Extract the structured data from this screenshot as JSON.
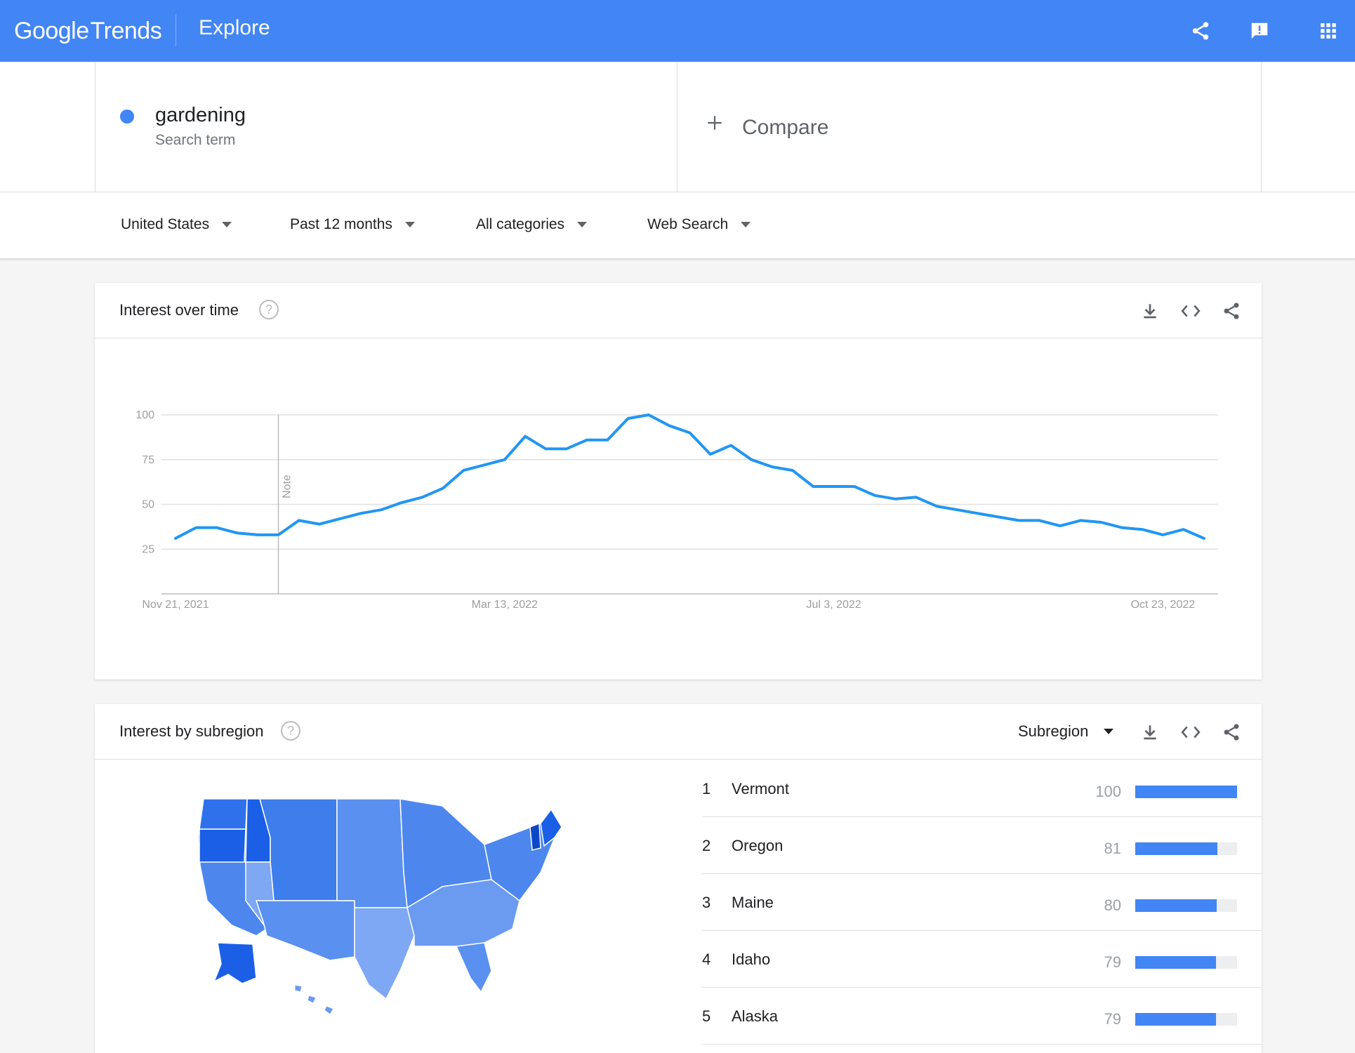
{
  "header": {
    "logo_google": "Google",
    "logo_trends": "Trends",
    "nav_title": "Explore",
    "icons": [
      "share-icon",
      "feedback-icon",
      "apps-icon"
    ]
  },
  "terms": {
    "term": "gardening",
    "term_type": "Search term",
    "term_color": "#4285f4",
    "compare_label": "Compare"
  },
  "filters": {
    "region": "United States",
    "time": "Past 12 months",
    "category": "All categories",
    "property": "Web Search"
  },
  "interest_over_time": {
    "title": "Interest over time",
    "help": "?",
    "note_label": "Note"
  },
  "chart_data": {
    "type": "line",
    "title": "",
    "xlabel": "",
    "ylabel": "",
    "ylim": [
      0,
      100
    ],
    "yticks": [
      25,
      50,
      75,
      100
    ],
    "xtick_labels": [
      "Nov 21, 2021",
      "Mar 13, 2022",
      "Jul 3, 2022",
      "Oct 23, 2022"
    ],
    "xtick_indices": [
      0,
      16,
      32,
      48
    ],
    "note_index": 5,
    "grid": true,
    "line_color": "#2196f3",
    "series": [
      {
        "values": [
          31,
          37,
          37,
          34,
          33,
          33,
          41,
          39,
          42,
          45,
          47,
          51,
          54,
          59,
          69,
          72,
          75,
          88,
          81,
          81,
          86,
          86,
          98,
          100,
          94,
          90,
          78,
          83,
          75,
          71,
          69,
          60,
          60,
          60,
          55,
          53,
          54,
          49,
          47,
          45,
          43,
          41,
          41,
          38,
          41,
          40,
          37,
          36,
          33,
          36,
          31
        ]
      }
    ]
  },
  "interest_by_subregion": {
    "title": "Interest by subregion",
    "help": "?",
    "resolution": "Subregion",
    "rows": [
      {
        "rank": "1",
        "name": "Vermont",
        "value": "100",
        "fraction": 1.0
      },
      {
        "rank": "2",
        "name": "Oregon",
        "value": "81",
        "fraction": 0.81
      },
      {
        "rank": "3",
        "name": "Maine",
        "value": "80",
        "fraction": 0.8
      },
      {
        "rank": "4",
        "name": "Idaho",
        "value": "79",
        "fraction": 0.79
      },
      {
        "rank": "5",
        "name": "Alaska",
        "value": "79",
        "fraction": 0.79
      }
    ],
    "map_colors": {
      "high": "#1a5fe6",
      "mid": "#4d87ee",
      "low": "#7ea8f3"
    }
  }
}
